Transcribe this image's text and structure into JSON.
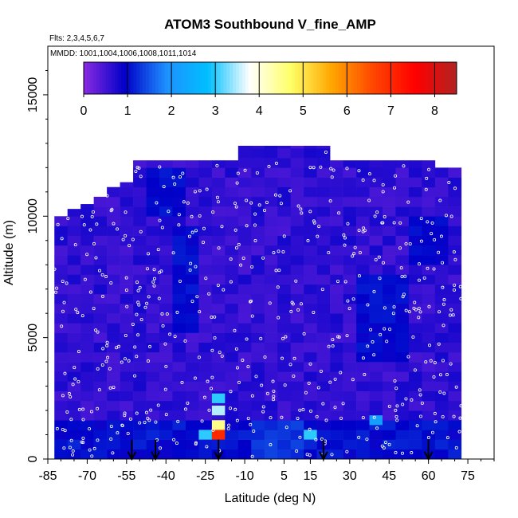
{
  "chart_data": {
    "type": "heatmap",
    "title": "ATOM3 Southbound V_fine_AMP",
    "subtitle_flights": "Flts: 2,3,4,5,6,7",
    "subtitle_dates": "MMDD: 1001,1004,1006,1008,1011,1014",
    "xlabel": "Latitude (deg N)",
    "ylabel": "Altitude (m)",
    "xlim": [
      -85,
      85
    ],
    "ylim": [
      0,
      17000
    ],
    "x_ticks": [
      -85,
      -70,
      -55,
      -40,
      -25,
      -10,
      5,
      15,
      30,
      45,
      60,
      75
    ],
    "y_ticks": [
      0,
      5000,
      10000,
      15000
    ],
    "colorbar": {
      "min": 0,
      "max": 8.5,
      "ticks": [
        0,
        1,
        2,
        3,
        4,
        5,
        6,
        7,
        8
      ],
      "colors": [
        "#8a2be2",
        "#0000c8",
        "#1e90ff",
        "#00bfff",
        "#ffffff",
        "#ffff66",
        "#ffa500",
        "#ff4500",
        "#ff0000",
        "#b22222"
      ]
    },
    "columns": [
      {
        "lat": -80,
        "top": 10000
      },
      {
        "lat": -75,
        "top": 10300
      },
      {
        "lat": -70,
        "top": 10500
      },
      {
        "lat": -65,
        "top": 10800
      },
      {
        "lat": -60,
        "top": 11200
      },
      {
        "lat": -55,
        "top": 11400
      },
      {
        "lat": -50,
        "top": 12300
      },
      {
        "lat": -45,
        "top": 12300
      },
      {
        "lat": -40,
        "top": 12300
      },
      {
        "lat": -35,
        "top": 12300
      },
      {
        "lat": -30,
        "top": 12300
      },
      {
        "lat": -25,
        "top": 12300
      },
      {
        "lat": -20,
        "top": 12300
      },
      {
        "lat": -15,
        "top": 12300
      },
      {
        "lat": -10,
        "top": 12900
      },
      {
        "lat": -5,
        "top": 12900
      },
      {
        "lat": 0,
        "top": 12900
      },
      {
        "lat": 5,
        "top": 12900
      },
      {
        "lat": 10,
        "top": 12900
      },
      {
        "lat": 15,
        "top": 12900
      },
      {
        "lat": 20,
        "top": 12900
      },
      {
        "lat": 25,
        "top": 12300
      },
      {
        "lat": 30,
        "top": 12300
      },
      {
        "lat": 35,
        "top": 12300
      },
      {
        "lat": 40,
        "top": 12300
      },
      {
        "lat": 45,
        "top": 12300
      },
      {
        "lat": 50,
        "top": 12300
      },
      {
        "lat": 55,
        "top": 12300
      },
      {
        "lat": 60,
        "top": 12300
      },
      {
        "lat": 65,
        "top": 12000
      },
      {
        "lat": 70,
        "top": 12000
      }
    ],
    "low_value_regions": [
      {
        "lat_min": -45,
        "lat_max": -30,
        "alt_min": 10000,
        "alt_max": 12000,
        "value": 1.0
      },
      {
        "lat_min": -35,
        "lat_max": -25,
        "alt_min": 5000,
        "alt_max": 9500,
        "value": 1.0
      },
      {
        "lat_min": 35,
        "lat_max": 55,
        "alt_min": 4000,
        "alt_max": 7500,
        "value": 1.0
      },
      {
        "lat_min": 55,
        "lat_max": 70,
        "alt_min": 8000,
        "alt_max": 10000,
        "value": 1.0
      },
      {
        "lat_min": -5,
        "lat_max": 15,
        "alt_min": 0,
        "alt_max": 1500,
        "value": 1.3
      }
    ],
    "high_value_cells": [
      {
        "lat": -20,
        "alt": 1000,
        "value": 7.0
      },
      {
        "lat": -20,
        "alt": 1400,
        "value": 4.5
      },
      {
        "lat": -20,
        "alt": 2000,
        "value": 3.5
      },
      {
        "lat": -20,
        "alt": 2500,
        "value": 3.0
      },
      {
        "lat": -25,
        "alt": 1000,
        "value": 3.0
      },
      {
        "lat": 15,
        "alt": 1000,
        "value": 3.0
      },
      {
        "lat": 40,
        "alt": 1600,
        "value": 2.2
      }
    ],
    "arrow_markers_lat": [
      -53,
      -44,
      -20,
      20,
      60
    ]
  }
}
